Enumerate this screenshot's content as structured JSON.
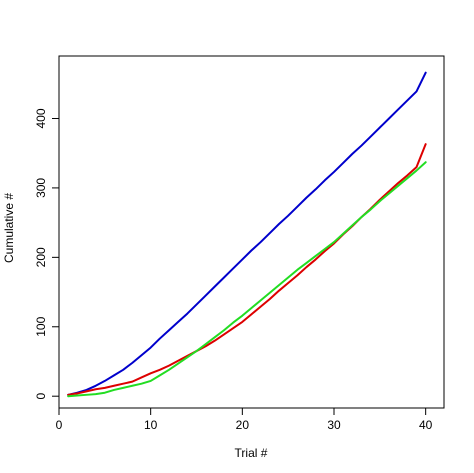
{
  "chart_data": {
    "type": "line",
    "title": "",
    "xlabel": "Trial #",
    "ylabel": "Cumulative #",
    "xlim": [
      0,
      42
    ],
    "ylim": [
      -17,
      490
    ],
    "x_ticks": [
      0,
      10,
      20,
      30,
      40
    ],
    "y_ticks": [
      0,
      100,
      200,
      300,
      400
    ],
    "grid": false,
    "legend": "none",
    "series": [
      {
        "color": "#0000cc",
        "points": [
          [
            1,
            2
          ],
          [
            2,
            5
          ],
          [
            3,
            9
          ],
          [
            4,
            15
          ],
          [
            5,
            22
          ],
          [
            6,
            30
          ],
          [
            7,
            38
          ],
          [
            8,
            48
          ],
          [
            9,
            59
          ],
          [
            10,
            70
          ],
          [
            11,
            83
          ],
          [
            12,
            95
          ],
          [
            13,
            107
          ],
          [
            14,
            119
          ],
          [
            15,
            132
          ],
          [
            16,
            145
          ],
          [
            17,
            158
          ],
          [
            18,
            171
          ],
          [
            19,
            184
          ],
          [
            20,
            197
          ],
          [
            21,
            210
          ],
          [
            22,
            222
          ],
          [
            23,
            235
          ],
          [
            24,
            248
          ],
          [
            25,
            260
          ],
          [
            26,
            273
          ],
          [
            27,
            286
          ],
          [
            28,
            298
          ],
          [
            29,
            311
          ],
          [
            30,
            323
          ],
          [
            31,
            336
          ],
          [
            32,
            349
          ],
          [
            33,
            361
          ],
          [
            34,
            374
          ],
          [
            35,
            387
          ],
          [
            36,
            400
          ],
          [
            37,
            413
          ],
          [
            38,
            426
          ],
          [
            39,
            439
          ],
          [
            40,
            466
          ]
        ]
      },
      {
        "color": "#dd0000",
        "points": [
          [
            1,
            2
          ],
          [
            2,
            4
          ],
          [
            3,
            7
          ],
          [
            4,
            10
          ],
          [
            5,
            12
          ],
          [
            6,
            15
          ],
          [
            7,
            18
          ],
          [
            8,
            21
          ],
          [
            9,
            27
          ],
          [
            10,
            33
          ],
          [
            11,
            38
          ],
          [
            12,
            44
          ],
          [
            13,
            51
          ],
          [
            14,
            58
          ],
          [
            15,
            65
          ],
          [
            16,
            72
          ],
          [
            17,
            80
          ],
          [
            18,
            89
          ],
          [
            19,
            98
          ],
          [
            20,
            107
          ],
          [
            21,
            118
          ],
          [
            22,
            129
          ],
          [
            23,
            140
          ],
          [
            24,
            152
          ],
          [
            25,
            163
          ],
          [
            26,
            174
          ],
          [
            27,
            186
          ],
          [
            28,
            197
          ],
          [
            29,
            209
          ],
          [
            30,
            220
          ],
          [
            31,
            233
          ],
          [
            32,
            245
          ],
          [
            33,
            258
          ],
          [
            34,
            270
          ],
          [
            35,
            283
          ],
          [
            36,
            295
          ],
          [
            37,
            307
          ],
          [
            38,
            318
          ],
          [
            39,
            330
          ],
          [
            40,
            363
          ]
        ]
      },
      {
        "color": "#22dd22",
        "points": [
          [
            1,
            0
          ],
          [
            2,
            1
          ],
          [
            3,
            2
          ],
          [
            4,
            3
          ],
          [
            5,
            5
          ],
          [
            6,
            9
          ],
          [
            7,
            12
          ],
          [
            8,
            15
          ],
          [
            9,
            18
          ],
          [
            10,
            22
          ],
          [
            11,
            30
          ],
          [
            12,
            38
          ],
          [
            13,
            47
          ],
          [
            14,
            56
          ],
          [
            15,
            65
          ],
          [
            16,
            75
          ],
          [
            17,
            85
          ],
          [
            18,
            95
          ],
          [
            19,
            106
          ],
          [
            20,
            116
          ],
          [
            21,
            127
          ],
          [
            22,
            138
          ],
          [
            23,
            149
          ],
          [
            24,
            160
          ],
          [
            25,
            171
          ],
          [
            26,
            182
          ],
          [
            27,
            192
          ],
          [
            28,
            202
          ],
          [
            29,
            212
          ],
          [
            30,
            222
          ],
          [
            31,
            234
          ],
          [
            32,
            246
          ],
          [
            33,
            258
          ],
          [
            34,
            269
          ],
          [
            35,
            281
          ],
          [
            36,
            292
          ],
          [
            37,
            303
          ],
          [
            38,
            314
          ],
          [
            39,
            325
          ],
          [
            40,
            337
          ]
        ]
      }
    ]
  }
}
